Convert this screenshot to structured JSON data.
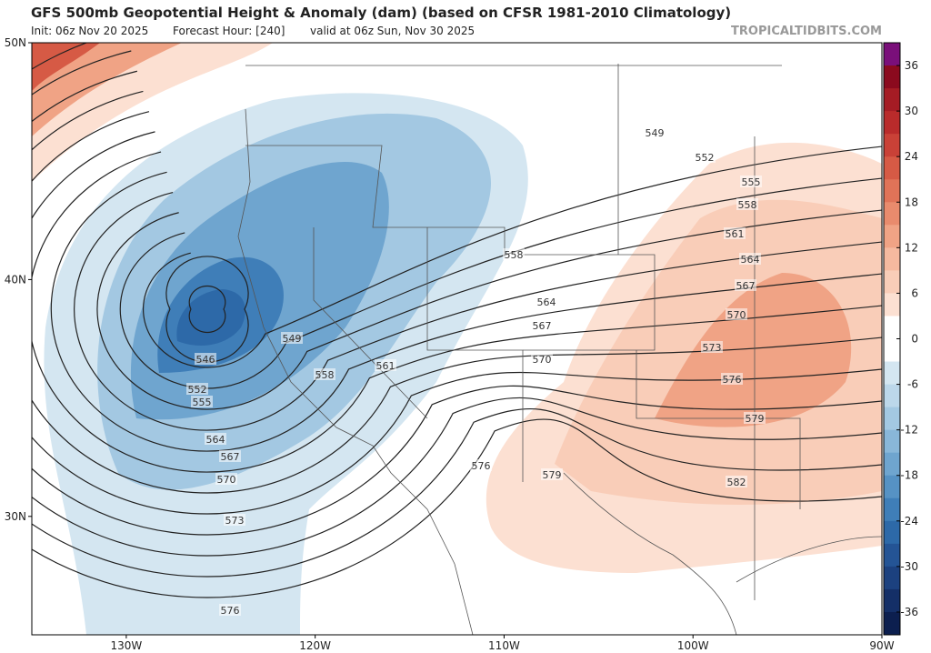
{
  "header": {
    "title": "GFS 500mb Geopotential Height & Anomaly (dam) (based on CFSR 1981-2010 Climatology)",
    "init": "Init: 06z Nov 20 2025",
    "forecast_hour": "Forecast Hour: [240]",
    "valid": "valid at 06z Sun, Nov 30 2025",
    "source": "TROPICALTIDBITS.COM"
  },
  "map": {
    "lon_range": [
      -135,
      -90
    ],
    "lat_range": [
      25,
      50
    ],
    "lat_ticks": [
      {
        "value": 50,
        "label": "50N"
      },
      {
        "value": 40,
        "label": "40N"
      },
      {
        "value": 30,
        "label": "30N"
      }
    ],
    "lon_ticks": [
      {
        "value": -130,
        "label": "130W"
      },
      {
        "value": -120,
        "label": "120W"
      },
      {
        "value": -110,
        "label": "110W"
      },
      {
        "value": -100,
        "label": "100W"
      },
      {
        "value": -90,
        "label": "90W"
      }
    ],
    "contour_labels": [
      549,
      552,
      555,
      558,
      561,
      564,
      567,
      570,
      573,
      576,
      579,
      582,
      549,
      546,
      552,
      555,
      558,
      561,
      558,
      564,
      567,
      570,
      564,
      567,
      570,
      573,
      576,
      576,
      579
    ]
  },
  "colorbar": {
    "range": [
      -39,
      39
    ],
    "ticks": [
      36,
      30,
      24,
      18,
      12,
      6,
      0,
      -6,
      -12,
      -18,
      -24,
      -30,
      -36
    ],
    "colors": [
      "#7a0f7a",
      "#8b0a1e",
      "#a51c24",
      "#b92b2b",
      "#c94137",
      "#d65a45",
      "#e07358",
      "#e98b6d",
      "#f0a385",
      "#f5b99f",
      "#f9cdb8",
      "#fce0d2",
      "#ffffff",
      "#ffffff",
      "#d4e6f1",
      "#bcd7ea",
      "#a3c8e2",
      "#89b7d9",
      "#6fa5cf",
      "#5692c4",
      "#3f7eb8",
      "#2d69a8",
      "#245495",
      "#1c417f",
      "#142f67",
      "#0c1f4f"
    ]
  }
}
